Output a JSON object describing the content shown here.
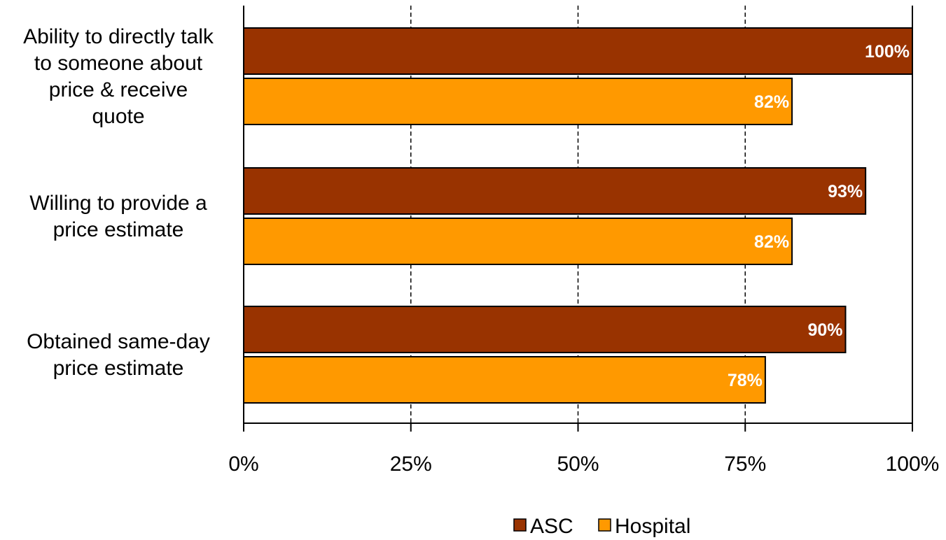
{
  "chart_data": {
    "type": "bar",
    "orientation": "horizontal",
    "categories": [
      [
        "Ability to directly talk",
        "to someone about",
        "price & receive",
        "quote"
      ],
      [
        "Willing to provide a",
        "price estimate"
      ],
      [
        "Obtained same-day",
        "price estimate"
      ]
    ],
    "series": [
      {
        "name": "ASC",
        "values": [
          100,
          93,
          90
        ],
        "labels": [
          "100%",
          "93%",
          "90%"
        ],
        "color": "#993300"
      },
      {
        "name": "Hospital",
        "values": [
          82,
          82,
          78
        ],
        "labels": [
          "82%",
          "82%",
          "78%"
        ],
        "color": "#FF9900"
      }
    ],
    "xlim": [
      0,
      100
    ],
    "ticks": [
      0,
      25,
      50,
      75,
      100
    ],
    "tick_labels": [
      "0%",
      "25%",
      "50%",
      "75%",
      "100%"
    ],
    "grid": "vertical dashed",
    "legend": "bottom",
    "title": "",
    "xlabel": "",
    "ylabel": ""
  }
}
